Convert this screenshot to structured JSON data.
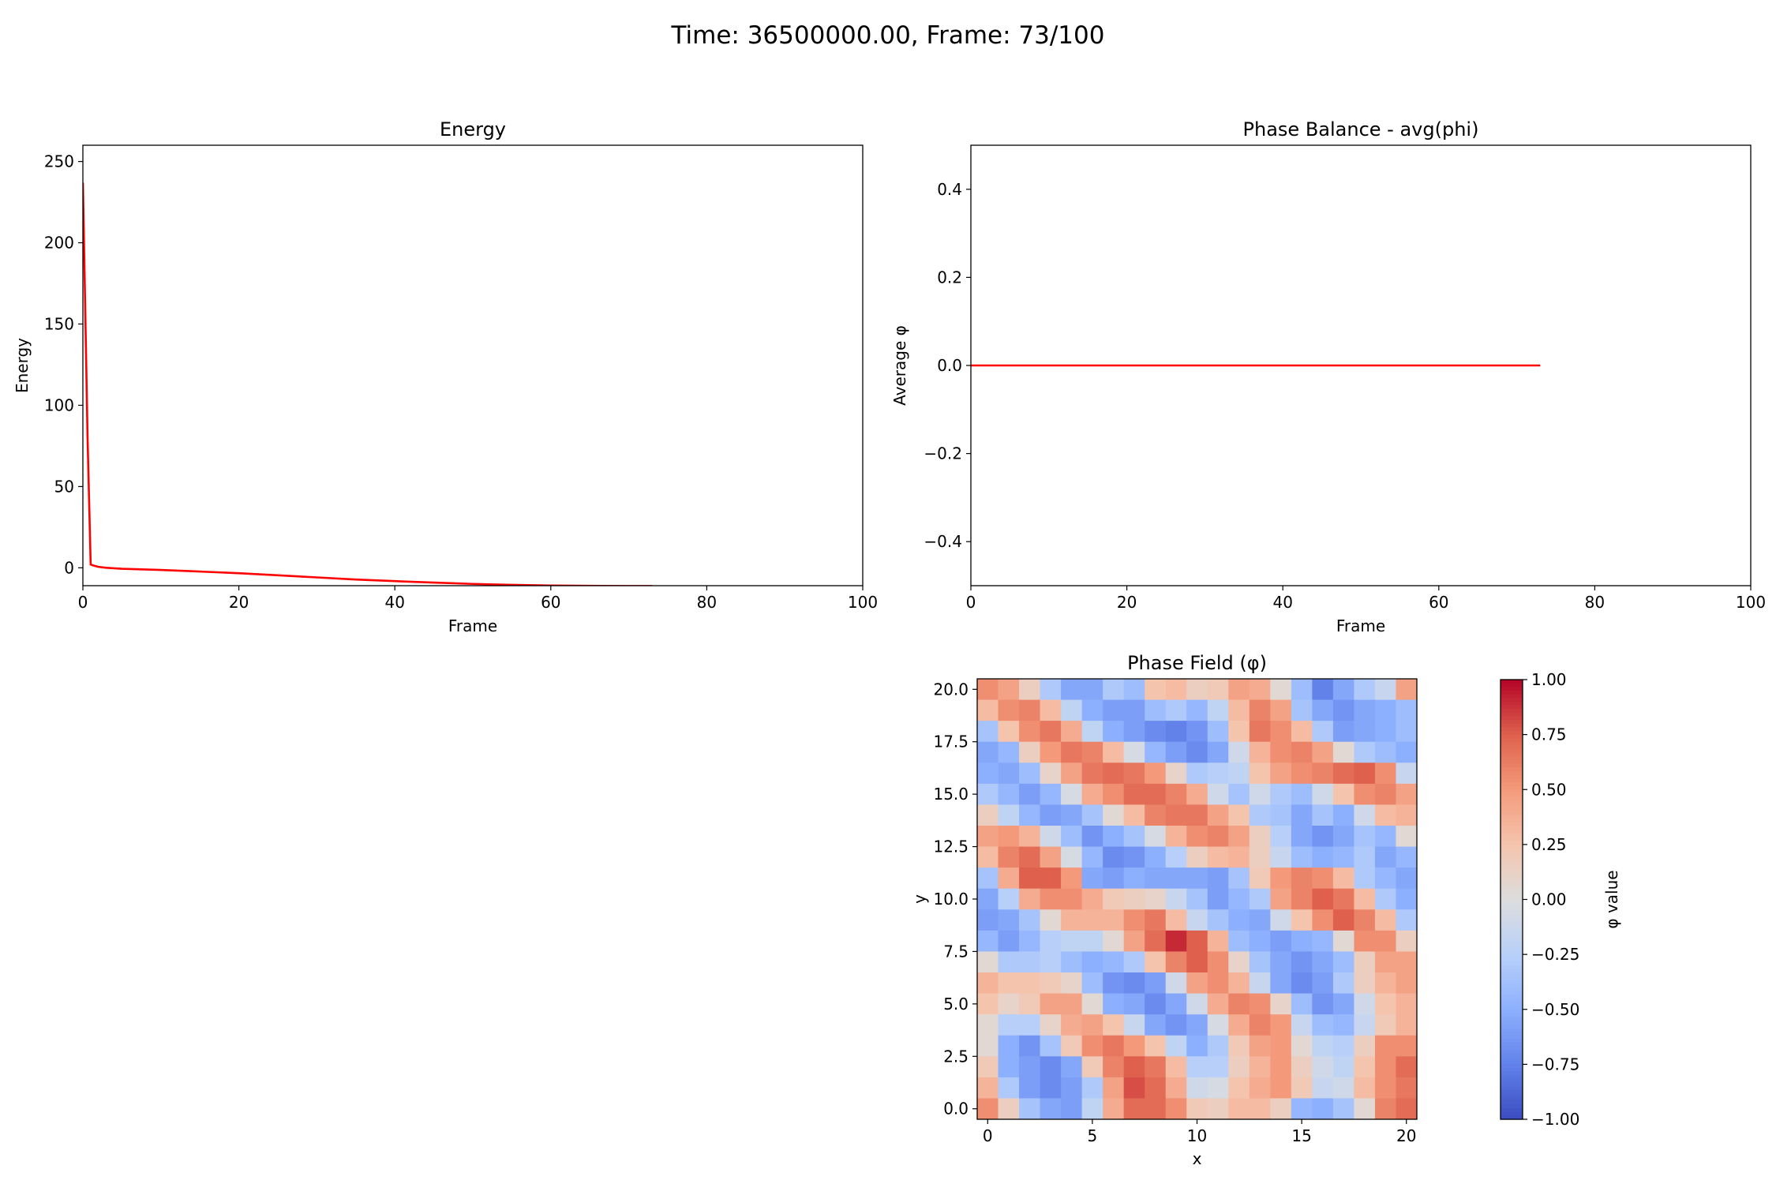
{
  "suptitle": "Time: 36500000.00, Frame: 73/100",
  "colors": {
    "line": "#ff0000",
    "frame": "#000000"
  },
  "chart_data": [
    {
      "id": "energy",
      "type": "line",
      "title": "Energy",
      "xlabel": "Frame",
      "ylabel": "Energy",
      "xlim": [
        0,
        100
      ],
      "ylim": [
        -11,
        260
      ],
      "xticks": [
        0,
        20,
        40,
        60,
        80,
        100
      ],
      "yticks": [
        0,
        50,
        100,
        150,
        200,
        250
      ],
      "xtick_labels": [
        "0",
        "20",
        "40",
        "60",
        "80",
        "100"
      ],
      "ytick_labels": [
        "0",
        "50",
        "100",
        "150",
        "200",
        "250"
      ],
      "grid": false,
      "series": [
        {
          "color": "#ff0000",
          "x": [
            0,
            0.3,
            0.6,
            1,
            1.5,
            2,
            3,
            5,
            10,
            15,
            20,
            25,
            30,
            35,
            40,
            45,
            50,
            55,
            60,
            65,
            70,
            73
          ],
          "y": [
            237,
            160,
            80,
            2,
            1.2,
            0.6,
            0,
            -0.6,
            -1.3,
            -2.3,
            -3.3,
            -4.6,
            -5.9,
            -7.2,
            -8.2,
            -9.1,
            -9.9,
            -10.5,
            -10.9,
            -11.1,
            -11.2,
            -11.2
          ]
        }
      ]
    },
    {
      "id": "phase-balance",
      "type": "line",
      "title": "Phase Balance - avg(phi)",
      "xlabel": "Frame",
      "ylabel": "Average φ",
      "xlim": [
        0,
        100
      ],
      "ylim": [
        -0.5,
        0.5
      ],
      "xticks": [
        0,
        20,
        40,
        60,
        80,
        100
      ],
      "yticks": [
        -0.4,
        -0.2,
        0.0,
        0.2,
        0.4
      ],
      "xtick_labels": [
        "0",
        "20",
        "40",
        "60",
        "80",
        "100"
      ],
      "ytick_labels": [
        "−0.4",
        "−0.2",
        "0.0",
        "0.2",
        "0.4"
      ],
      "grid": false,
      "series": [
        {
          "color": "#ff0000",
          "x": [
            0,
            73
          ],
          "y": [
            0,
            0
          ]
        }
      ]
    },
    {
      "id": "phase-field",
      "type": "heatmap",
      "title": "Phase Field (φ)",
      "xlabel": "x",
      "ylabel": "y",
      "colormap": "coolwarm",
      "vmin": -1,
      "vmax": 1,
      "xlim": [
        -0.5,
        20.5
      ],
      "ylim": [
        -0.5,
        20.5
      ],
      "xticks": [
        0,
        5,
        10,
        15,
        20
      ],
      "yticks": [
        0,
        2.5,
        5,
        7.5,
        10,
        12.5,
        15,
        17.5,
        20
      ],
      "xtick_labels": [
        "0",
        "5",
        "10",
        "15",
        "20"
      ],
      "ytick_labels": [
        "0.0",
        "2.5",
        "5.0",
        "7.5",
        "10.0",
        "12.5",
        "15.0",
        "17.5",
        "20.0"
      ],
      "colorbar": {
        "label": "φ value",
        "ticks": [
          -1,
          -0.75,
          -0.5,
          -0.25,
          0,
          0.25,
          0.5,
          0.75,
          1
        ],
        "tick_labels": [
          "−1.00",
          "−0.75",
          "−0.50",
          "−0.25",
          "0.00",
          "0.25",
          "0.50",
          "0.75",
          "1.00"
        ]
      },
      "grid_note": "rows listed from y=20 (top) down to y=0 (bottom); 21 columns x=0..20",
      "values": [
        [
          0.55,
          0.45,
          0.15,
          -0.3,
          -0.55,
          -0.55,
          -0.3,
          -0.4,
          0.25,
          0.3,
          0.15,
          0.2,
          0.45,
          0.4,
          0.05,
          -0.4,
          -0.75,
          -0.55,
          -0.3,
          -0.15,
          0.45
        ],
        [
          0.3,
          0.55,
          0.6,
          0.3,
          -0.2,
          -0.5,
          -0.6,
          -0.6,
          -0.4,
          -0.3,
          -0.45,
          -0.2,
          0.3,
          0.6,
          0.45,
          -0.35,
          -0.55,
          -0.65,
          -0.55,
          -0.5,
          -0.4
        ],
        [
          -0.35,
          0.25,
          0.55,
          0.65,
          0.4,
          -0.2,
          -0.5,
          -0.6,
          -0.7,
          -0.75,
          -0.65,
          -0.4,
          0.25,
          0.65,
          0.55,
          0.3,
          -0.3,
          -0.6,
          -0.55,
          -0.5,
          -0.4
        ],
        [
          -0.55,
          -0.45,
          0.15,
          0.5,
          0.65,
          0.6,
          0.3,
          -0.05,
          -0.45,
          -0.6,
          -0.7,
          -0.55,
          -0.1,
          0.35,
          0.55,
          0.6,
          0.45,
          0.05,
          -0.3,
          -0.4,
          -0.5
        ],
        [
          -0.5,
          -0.55,
          -0.4,
          0.1,
          0.45,
          0.65,
          0.7,
          0.65,
          0.5,
          0.1,
          -0.3,
          -0.25,
          -0.2,
          0.25,
          0.45,
          0.55,
          0.6,
          0.7,
          0.75,
          0.55,
          -0.15
        ],
        [
          -0.3,
          -0.45,
          -0.6,
          -0.45,
          -0.05,
          0.4,
          0.55,
          0.7,
          0.7,
          0.6,
          0.4,
          -0.1,
          -0.35,
          -0.1,
          -0.3,
          -0.4,
          -0.1,
          0.25,
          0.55,
          0.6,
          0.45
        ],
        [
          0.15,
          -0.2,
          -0.45,
          -0.6,
          -0.55,
          -0.35,
          0.05,
          0.3,
          0.6,
          0.65,
          0.65,
          0.45,
          0.25,
          -0.3,
          -0.35,
          -0.55,
          -0.35,
          -0.5,
          -0.1,
          0.3,
          0.35
        ],
        [
          0.45,
          0.5,
          0.35,
          -0.1,
          -0.4,
          -0.65,
          -0.5,
          -0.35,
          -0.05,
          0.35,
          0.55,
          0.6,
          0.45,
          0.15,
          -0.25,
          -0.55,
          -0.65,
          -0.55,
          -0.35,
          -0.45,
          0.05
        ],
        [
          0.3,
          0.6,
          0.7,
          0.45,
          -0.05,
          -0.45,
          -0.7,
          -0.65,
          -0.5,
          -0.25,
          0.15,
          0.3,
          0.35,
          0.15,
          -0.15,
          -0.4,
          -0.5,
          -0.45,
          -0.3,
          -0.55,
          -0.45
        ],
        [
          -0.35,
          0.4,
          0.75,
          0.75,
          0.5,
          -0.55,
          -0.6,
          -0.5,
          -0.55,
          -0.55,
          -0.55,
          -0.6,
          -0.35,
          0.2,
          0.5,
          0.6,
          0.55,
          0.3,
          -0.3,
          -0.45,
          -0.55
        ],
        [
          -0.55,
          -0.25,
          0.4,
          0.55,
          0.55,
          0.4,
          0.2,
          0.15,
          0.1,
          -0.15,
          -0.35,
          -0.6,
          -0.45,
          -0.3,
          0.45,
          0.6,
          0.75,
          0.65,
          0.3,
          -0.3,
          -0.5
        ],
        [
          -0.6,
          -0.55,
          -0.35,
          0.05,
          0.35,
          0.35,
          0.35,
          0.55,
          0.65,
          0.3,
          -0.15,
          -0.35,
          -0.5,
          -0.55,
          -0.1,
          0.25,
          0.55,
          0.75,
          0.6,
          0.3,
          -0.3
        ],
        [
          -0.45,
          -0.6,
          -0.45,
          -0.25,
          -0.2,
          -0.2,
          0.05,
          0.45,
          0.7,
          0.9,
          0.75,
          0.35,
          -0.4,
          -0.5,
          -0.6,
          -0.5,
          -0.45,
          0.05,
          0.55,
          0.55,
          0.15
        ],
        [
          0.05,
          -0.3,
          -0.3,
          -0.25,
          -0.4,
          -0.5,
          -0.45,
          -0.3,
          0.25,
          0.6,
          0.75,
          0.55,
          0.1,
          -0.35,
          -0.55,
          -0.65,
          -0.55,
          -0.4,
          0.15,
          0.45,
          0.45
        ],
        [
          0.35,
          0.25,
          0.25,
          0.2,
          0.1,
          -0.4,
          -0.65,
          -0.7,
          -0.6,
          -0.1,
          0.45,
          0.55,
          0.35,
          -0.15,
          -0.55,
          -0.7,
          -0.6,
          -0.3,
          0.15,
          0.35,
          0.45
        ],
        [
          0.25,
          0.1,
          0.2,
          0.45,
          0.45,
          0.05,
          -0.5,
          -0.55,
          -0.7,
          -0.55,
          -0.1,
          0.4,
          0.6,
          0.55,
          0.1,
          -0.4,
          -0.65,
          -0.55,
          -0.1,
          0.25,
          0.35
        ],
        [
          0.05,
          -0.25,
          -0.25,
          0.1,
          0.4,
          0.45,
          0.25,
          -0.15,
          -0.55,
          -0.65,
          -0.55,
          -0.05,
          0.4,
          0.6,
          0.5,
          -0.15,
          -0.4,
          -0.45,
          -0.15,
          0.2,
          0.35
        ],
        [
          0.05,
          -0.5,
          -0.65,
          -0.35,
          0.2,
          0.55,
          0.65,
          0.5,
          0.25,
          -0.2,
          -0.5,
          -0.3,
          0.2,
          0.45,
          0.5,
          0.05,
          -0.2,
          -0.25,
          0.15,
          0.55,
          0.55
        ],
        [
          0.2,
          -0.5,
          -0.6,
          -0.7,
          -0.55,
          0.2,
          0.6,
          0.75,
          0.65,
          0.3,
          -0.25,
          -0.25,
          0.15,
          0.35,
          0.5,
          0.15,
          -0.1,
          -0.2,
          0.25,
          0.55,
          0.7
        ],
        [
          0.35,
          -0.3,
          -0.6,
          -0.7,
          -0.6,
          -0.3,
          0.45,
          0.8,
          0.7,
          0.4,
          -0.1,
          -0.05,
          0.25,
          0.4,
          0.5,
          0.2,
          -0.15,
          -0.1,
          0.3,
          0.55,
          0.65
        ],
        [
          0.55,
          0.15,
          -0.35,
          -0.55,
          -0.6,
          -0.2,
          0.4,
          0.7,
          0.7,
          0.55,
          0.2,
          0.15,
          0.3,
          0.3,
          0.15,
          -0.45,
          -0.5,
          -0.35,
          0.05,
          0.6,
          0.7
        ]
      ]
    }
  ]
}
